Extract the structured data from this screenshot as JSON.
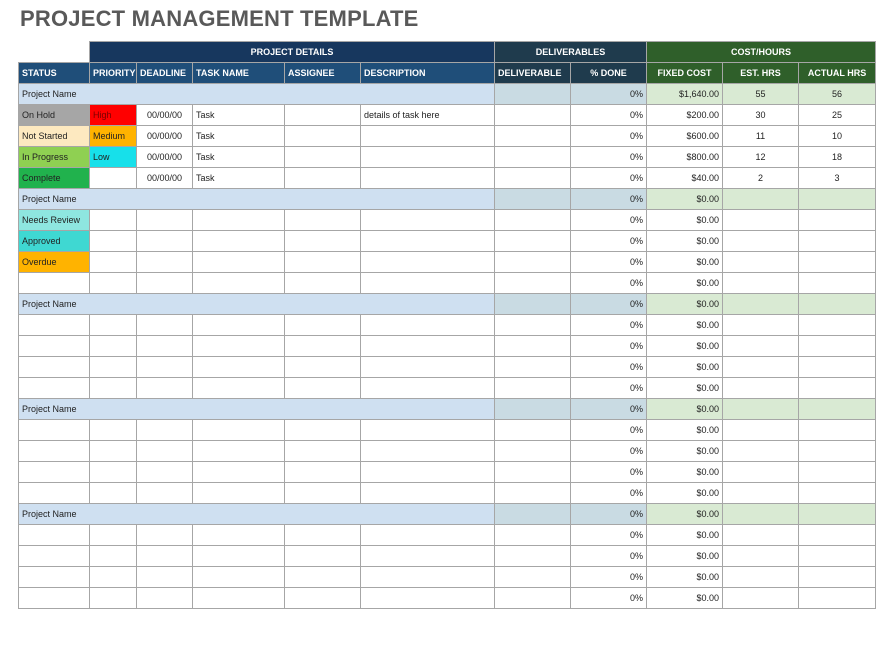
{
  "title": "PROJECT MANAGEMENT TEMPLATE",
  "group_headers": {
    "project_details": "PROJECT DETAILS",
    "deliverables": "DELIVERABLES",
    "cost_hours": "COST/HOURS"
  },
  "columns": [
    "STATUS",
    "PRIORITY",
    "DEADLINE",
    "TASK NAME",
    "ASSIGNEE",
    "DESCRIPTION",
    "DELIVERABLE",
    "% DONE",
    "FIXED COST",
    "EST. HRS",
    "ACTUAL HRS"
  ],
  "colors": {
    "on_hold": "#a6a6a6",
    "not_started": "#fde9c0",
    "in_progress": "#8fd052",
    "complete": "#21b24d",
    "needs_review": "#8ee6e0",
    "approved": "#3fd8d2",
    "overdue": "#ffb300",
    "high": "#ff0000",
    "medium": "#ffb300",
    "low": "#17e0ea",
    "project_row": "#cfe0f1",
    "cost_row": "#d9ead3"
  },
  "sections": [
    {
      "project": {
        "name": "Project Name",
        "done": "0%",
        "cost": "$1,640.00",
        "est": "55",
        "actual": "56"
      },
      "rows": [
        {
          "status": "On Hold",
          "status_class": "st-onhold",
          "priority": "High",
          "priority_class": "pr-high",
          "deadline": "00/00/00",
          "task": "Task",
          "assignee": "",
          "description": "details of task here",
          "deliverable": "",
          "done": "0%",
          "cost": "$200.00",
          "est": "30",
          "actual": "25"
        },
        {
          "status": "Not Started",
          "status_class": "st-notstarted",
          "priority": "Medium",
          "priority_class": "pr-medium",
          "deadline": "00/00/00",
          "task": "Task",
          "assignee": "",
          "description": "",
          "deliverable": "",
          "done": "0%",
          "cost": "$600.00",
          "est": "11",
          "actual": "10"
        },
        {
          "status": "In Progress",
          "status_class": "st-inprogress",
          "priority": "Low",
          "priority_class": "pr-low",
          "deadline": "00/00/00",
          "task": "Task",
          "assignee": "",
          "description": "",
          "deliverable": "",
          "done": "0%",
          "cost": "$800.00",
          "est": "12",
          "actual": "18"
        },
        {
          "status": "Complete",
          "status_class": "st-complete",
          "priority": "",
          "priority_class": "",
          "deadline": "00/00/00",
          "task": "Task",
          "assignee": "",
          "description": "",
          "deliverable": "",
          "done": "0%",
          "cost": "$40.00",
          "est": "2",
          "actual": "3"
        }
      ]
    },
    {
      "project": {
        "name": "Project Name",
        "done": "0%",
        "cost": "$0.00",
        "est": "",
        "actual": ""
      },
      "rows": [
        {
          "status": "Needs Review",
          "status_class": "st-review",
          "priority": "",
          "priority_class": "",
          "deadline": "",
          "task": "",
          "assignee": "",
          "description": "",
          "deliverable": "",
          "done": "0%",
          "cost": "$0.00",
          "est": "",
          "actual": ""
        },
        {
          "status": "Approved",
          "status_class": "st-approved",
          "priority": "",
          "priority_class": "",
          "deadline": "",
          "task": "",
          "assignee": "",
          "description": "",
          "deliverable": "",
          "done": "0%",
          "cost": "$0.00",
          "est": "",
          "actual": ""
        },
        {
          "status": "Overdue",
          "status_class": "st-overdue",
          "priority": "",
          "priority_class": "",
          "deadline": "",
          "task": "",
          "assignee": "",
          "description": "",
          "deliverable": "",
          "done": "0%",
          "cost": "$0.00",
          "est": "",
          "actual": ""
        },
        {
          "status": "",
          "status_class": "",
          "priority": "",
          "priority_class": "",
          "deadline": "",
          "task": "",
          "assignee": "",
          "description": "",
          "deliverable": "",
          "done": "0%",
          "cost": "$0.00",
          "est": "",
          "actual": ""
        }
      ]
    },
    {
      "project": {
        "name": "Project Name",
        "done": "0%",
        "cost": "$0.00",
        "est": "",
        "actual": ""
      },
      "rows": [
        {
          "status": "",
          "status_class": "",
          "priority": "",
          "priority_class": "",
          "deadline": "",
          "task": "",
          "assignee": "",
          "description": "",
          "deliverable": "",
          "done": "0%",
          "cost": "$0.00",
          "est": "",
          "actual": ""
        },
        {
          "status": "",
          "status_class": "",
          "priority": "",
          "priority_class": "",
          "deadline": "",
          "task": "",
          "assignee": "",
          "description": "",
          "deliverable": "",
          "done": "0%",
          "cost": "$0.00",
          "est": "",
          "actual": ""
        },
        {
          "status": "",
          "status_class": "",
          "priority": "",
          "priority_class": "",
          "deadline": "",
          "task": "",
          "assignee": "",
          "description": "",
          "deliverable": "",
          "done": "0%",
          "cost": "$0.00",
          "est": "",
          "actual": ""
        },
        {
          "status": "",
          "status_class": "",
          "priority": "",
          "priority_class": "",
          "deadline": "",
          "task": "",
          "assignee": "",
          "description": "",
          "deliverable": "",
          "done": "0%",
          "cost": "$0.00",
          "est": "",
          "actual": ""
        }
      ]
    },
    {
      "project": {
        "name": "Project Name",
        "done": "0%",
        "cost": "$0.00",
        "est": "",
        "actual": ""
      },
      "rows": [
        {
          "status": "",
          "status_class": "",
          "priority": "",
          "priority_class": "",
          "deadline": "",
          "task": "",
          "assignee": "",
          "description": "",
          "deliverable": "",
          "done": "0%",
          "cost": "$0.00",
          "est": "",
          "actual": ""
        },
        {
          "status": "",
          "status_class": "",
          "priority": "",
          "priority_class": "",
          "deadline": "",
          "task": "",
          "assignee": "",
          "description": "",
          "deliverable": "",
          "done": "0%",
          "cost": "$0.00",
          "est": "",
          "actual": ""
        },
        {
          "status": "",
          "status_class": "",
          "priority": "",
          "priority_class": "",
          "deadline": "",
          "task": "",
          "assignee": "",
          "description": "",
          "deliverable": "",
          "done": "0%",
          "cost": "$0.00",
          "est": "",
          "actual": ""
        },
        {
          "status": "",
          "status_class": "",
          "priority": "",
          "priority_class": "",
          "deadline": "",
          "task": "",
          "assignee": "",
          "description": "",
          "deliverable": "",
          "done": "0%",
          "cost": "$0.00",
          "est": "",
          "actual": ""
        }
      ]
    },
    {
      "project": {
        "name": "Project Name",
        "done": "0%",
        "cost": "$0.00",
        "est": "",
        "actual": ""
      },
      "rows": [
        {
          "status": "",
          "status_class": "",
          "priority": "",
          "priority_class": "",
          "deadline": "",
          "task": "",
          "assignee": "",
          "description": "",
          "deliverable": "",
          "done": "0%",
          "cost": "$0.00",
          "est": "",
          "actual": ""
        },
        {
          "status": "",
          "status_class": "",
          "priority": "",
          "priority_class": "",
          "deadline": "",
          "task": "",
          "assignee": "",
          "description": "",
          "deliverable": "",
          "done": "0%",
          "cost": "$0.00",
          "est": "",
          "actual": ""
        },
        {
          "status": "",
          "status_class": "",
          "priority": "",
          "priority_class": "",
          "deadline": "",
          "task": "",
          "assignee": "",
          "description": "",
          "deliverable": "",
          "done": "0%",
          "cost": "$0.00",
          "est": "",
          "actual": ""
        },
        {
          "status": "",
          "status_class": "",
          "priority": "",
          "priority_class": "",
          "deadline": "",
          "task": "",
          "assignee": "",
          "description": "",
          "deliverable": "",
          "done": "0%",
          "cost": "$0.00",
          "est": "",
          "actual": ""
        }
      ]
    }
  ]
}
